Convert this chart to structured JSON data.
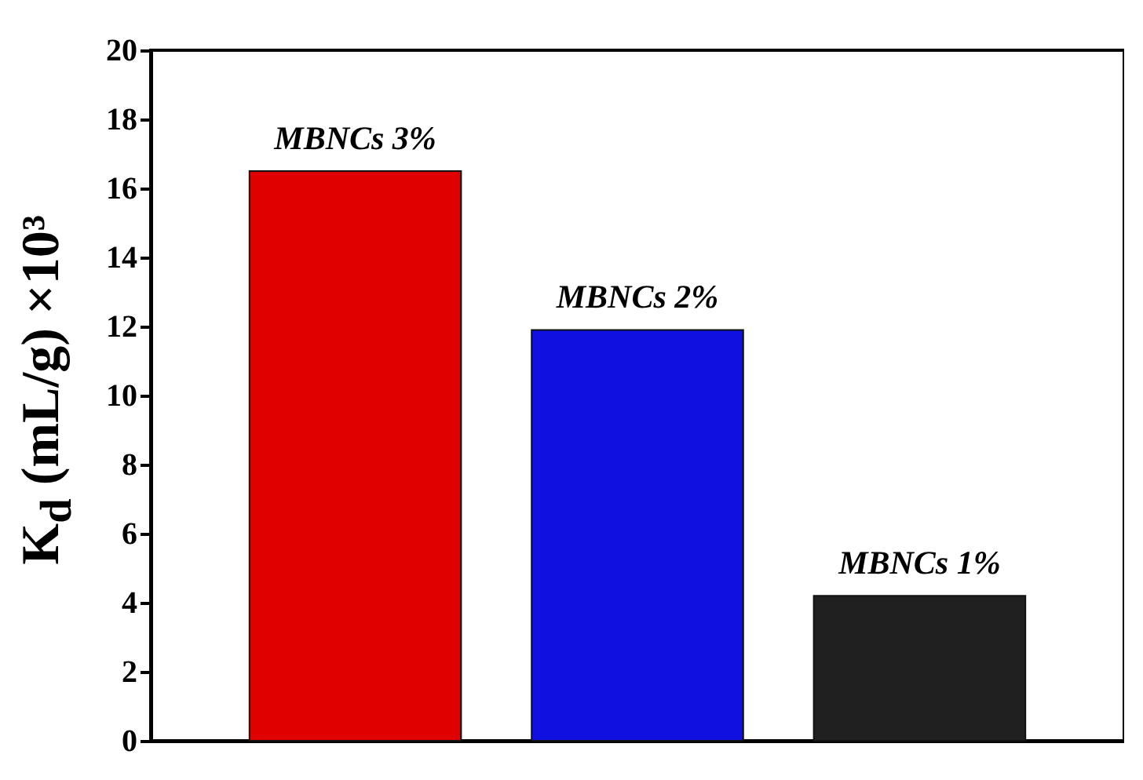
{
  "chart_data": {
    "type": "bar",
    "ylabel": "K$_{d}$ (mL/g) ×10³",
    "categories": [
      "MBNCs 3%",
      "MBNCs 2%",
      "MBNCs 1%"
    ],
    "values": [
      16.5,
      11.9,
      4.2
    ],
    "colors": [
      "#e00000",
      "#1010e0",
      "#202020"
    ],
    "ylim": [
      0,
      20
    ],
    "yticks": [
      0,
      2,
      4,
      6,
      8,
      10,
      12,
      14,
      16,
      18,
      20
    ]
  }
}
